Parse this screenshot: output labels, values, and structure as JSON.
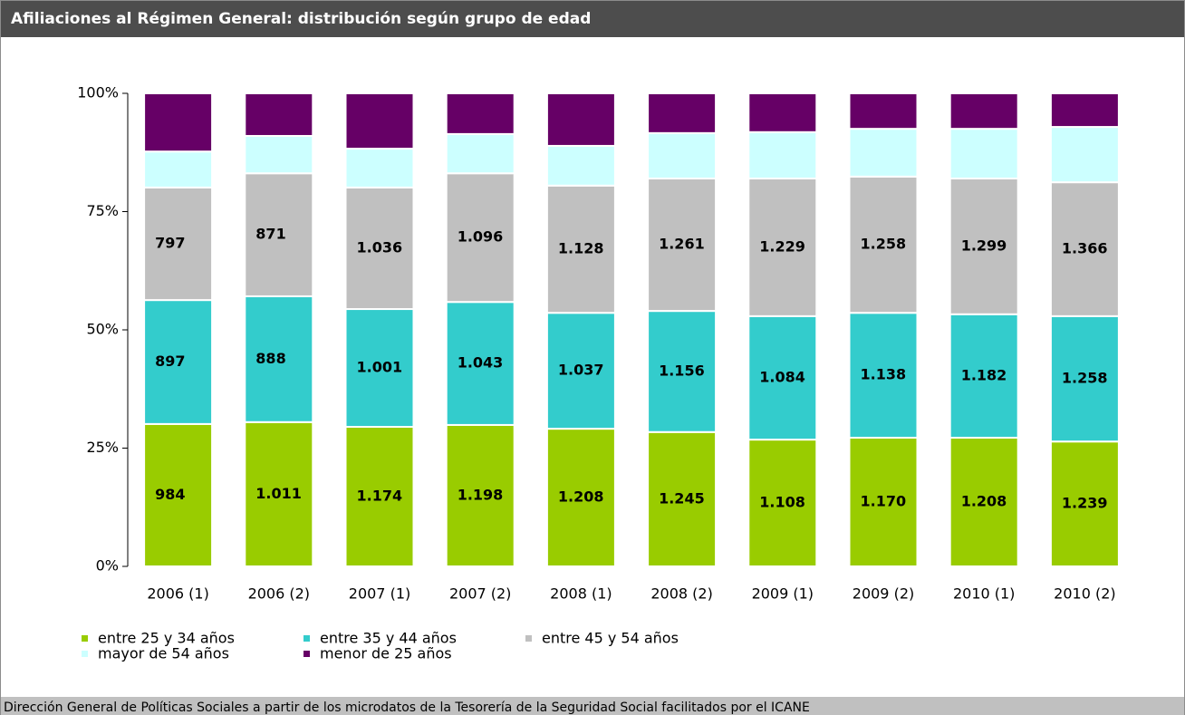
{
  "chart_data": {
    "type": "bar",
    "stacked": true,
    "title": "Afiliaciones al Régimen General: distribución según grupo de edad",
    "source": "Dirección General de Políticas Sociales a partir de los microdatos de la Tesorería de la Seguridad Social facilitados por el ICANE",
    "categories": [
      "2006 (1)",
      "2006 (2)",
      "2007 (1)",
      "2007 (2)",
      "2008 (1)",
      "2008 (2)",
      "2009 (1)",
      "2009 (2)",
      "2010 (1)",
      "2010 (2)"
    ],
    "series": [
      {
        "name": "entre 25 y 34 años",
        "color": "#99cc00",
        "values": [
          30.1,
          30.5,
          29.5,
          29.9,
          29.1,
          28.4,
          26.8,
          27.2,
          27.2,
          26.4
        ],
        "labels": [
          "984",
          "1.011",
          "1.174",
          "1.198",
          "1.208",
          "1.245",
          "1.108",
          "1.170",
          "1.208",
          "1.239"
        ]
      },
      {
        "name": "entre 35 y 44 años",
        "color": "#33cccc",
        "values": [
          26.2,
          26.6,
          24.9,
          26.0,
          24.5,
          25.6,
          26.1,
          26.4,
          26.1,
          26.5
        ],
        "labels": [
          "897",
          "888",
          "1.001",
          "1.043",
          "1.037",
          "1.156",
          "1.084",
          "1.138",
          "1.182",
          "1.258"
        ]
      },
      {
        "name": "entre 45 y 54 años",
        "color": "#c0c0c0",
        "values": [
          23.8,
          26.0,
          25.7,
          27.2,
          26.9,
          28.0,
          29.1,
          28.8,
          28.7,
          28.3
        ],
        "labels": [
          "797",
          "871",
          "1.036",
          "1.096",
          "1.128",
          "1.261",
          "1.229",
          "1.258",
          "1.299",
          "1.366"
        ]
      },
      {
        "name": "mayor de 54 años",
        "color": "#ccffff",
        "values": [
          7.6,
          7.9,
          8.2,
          8.3,
          8.4,
          9.6,
          9.8,
          10.1,
          10.5,
          11.7
        ]
      },
      {
        "name": "menor de 25 años",
        "color": "#660066",
        "values": [
          12.3,
          9.0,
          11.7,
          8.6,
          11.1,
          8.4,
          8.2,
          7.5,
          7.5,
          7.1
        ]
      }
    ],
    "ylim": [
      0,
      100
    ],
    "yticks": [
      {
        "value": 0,
        "label": "0%"
      },
      {
        "value": 25,
        "label": "25%"
      },
      {
        "value": 50,
        "label": "50%"
      },
      {
        "value": 75,
        "label": "75%"
      },
      {
        "value": 100,
        "label": "100%"
      }
    ],
    "legend": "bottom-left"
  }
}
